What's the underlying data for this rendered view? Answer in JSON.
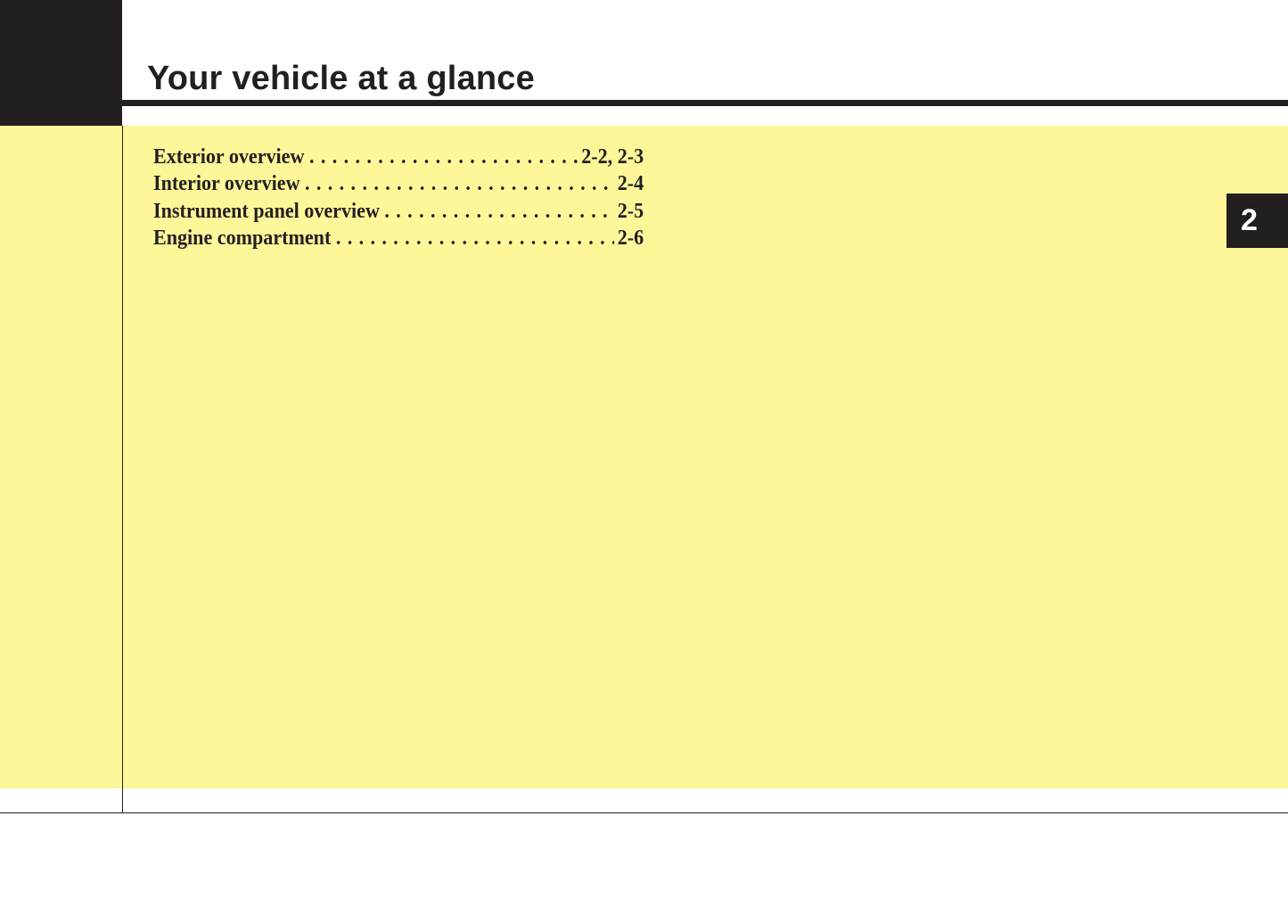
{
  "header": {
    "title": "Your vehicle at a glance"
  },
  "toc": [
    {
      "label": "Exterior overview",
      "page": "2-2, 2-3"
    },
    {
      "label": "Interior overview",
      "page": "2-4"
    },
    {
      "label": "Instrument panel overview",
      "page": "2-5"
    },
    {
      "label": "Engine compartment",
      "page": "2-6"
    }
  ],
  "chapter_tab": {
    "number": "2"
  },
  "colors": {
    "background_panel": "#fef799",
    "dark": "#231f20"
  }
}
